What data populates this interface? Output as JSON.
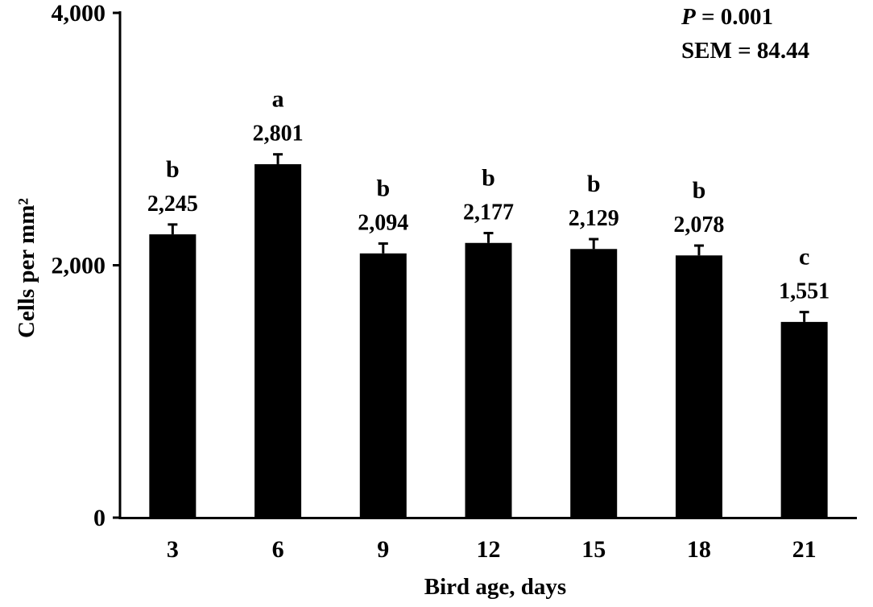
{
  "chart_data": {
    "type": "bar",
    "categories": [
      "3",
      "6",
      "9",
      "12",
      "15",
      "18",
      "21"
    ],
    "values": [
      2245,
      2801,
      2094,
      2177,
      2129,
      2078,
      1551
    ],
    "value_labels": [
      "2,245",
      "2,801",
      "2,094",
      "2,177",
      "2,129",
      "2,078",
      "1,551"
    ],
    "significance_letters": [
      "b",
      "a",
      "b",
      "b",
      "b",
      "b",
      "c"
    ],
    "error_bar_sem": 84.44,
    "xlabel": "Bird age, days",
    "ylabel": "Cells per mm²",
    "ylim": [
      0,
      4000
    ],
    "yticks": [
      0,
      2000,
      4000
    ],
    "ytick_labels": [
      "0",
      "2,000",
      "4,000"
    ],
    "grid": false,
    "bar_color": "#000000",
    "annotations": {
      "p_label": "P",
      "p_value": " = 0.001",
      "sem": "SEM = 84.44"
    }
  }
}
